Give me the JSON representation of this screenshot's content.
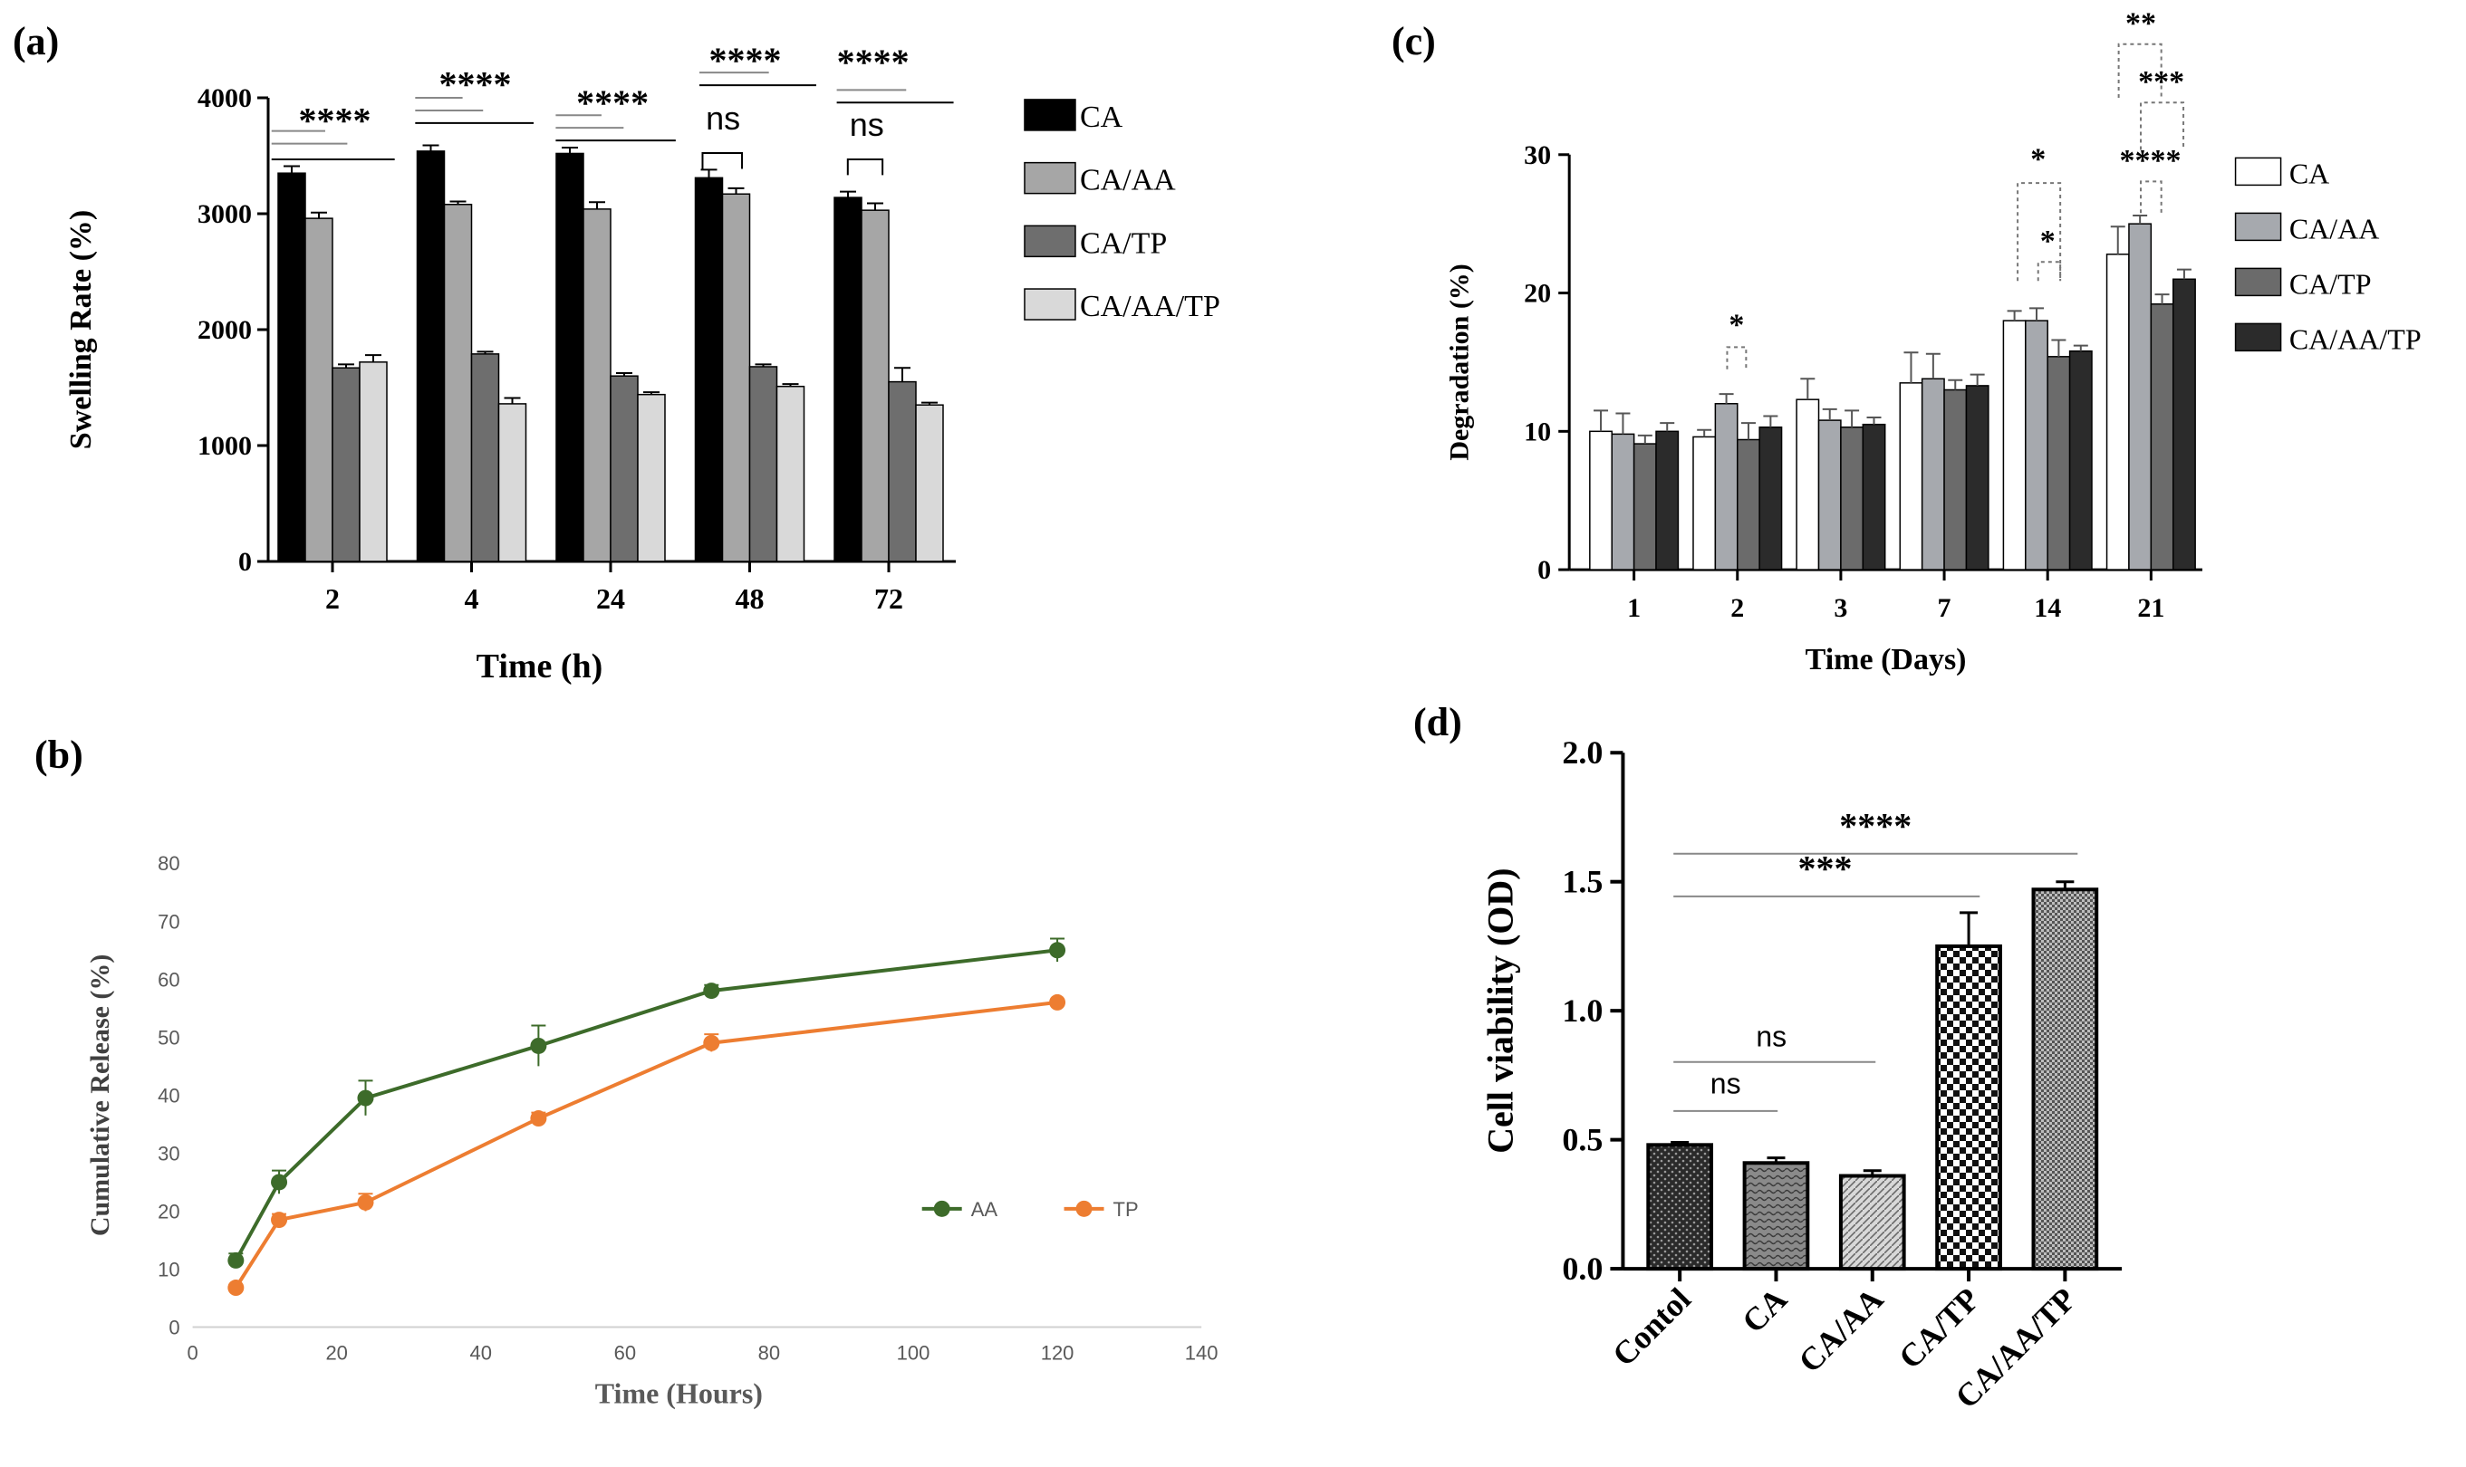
{
  "panels": {
    "a": "(a)",
    "b": "(b)",
    "c": "(c)",
    "d": "(d)"
  },
  "chart_data": [
    {
      "id": "a",
      "type": "bar",
      "title": "",
      "xlabel": "Time (h)",
      "ylabel": "Swelling Rate (%)",
      "ylim": [
        0,
        4000
      ],
      "yticks": [
        "0",
        "1000",
        "2000",
        "3000",
        "4000"
      ],
      "categories": [
        "2",
        "4",
        "24",
        "48",
        "72"
      ],
      "series": [
        {
          "name": "CA",
          "color": "#000000",
          "values": [
            3350,
            3540,
            3520,
            3310,
            3140
          ],
          "errors": [
            60,
            50,
            50,
            70,
            50
          ]
        },
        {
          "name": "CA/AA",
          "color": "#a6a6a6",
          "values": [
            2960,
            3080,
            3040,
            3170,
            3030
          ],
          "errors": [
            50,
            25,
            60,
            50,
            60
          ]
        },
        {
          "name": "CA/TP",
          "color": "#6e6e6e",
          "values": [
            1670,
            1790,
            1600,
            1680,
            1550
          ],
          "errors": [
            30,
            20,
            25,
            20,
            120
          ]
        },
        {
          "name": "CA/AA/TP",
          "color": "#d9d9d9",
          "values": [
            1720,
            1360,
            1440,
            1510,
            1350
          ],
          "errors": [
            60,
            50,
            20,
            20,
            20
          ]
        }
      ],
      "legend_position": "right",
      "annotations": [
        "****",
        "****",
        "****",
        "ns",
        "****",
        "ns"
      ]
    },
    {
      "id": "b",
      "type": "line",
      "title": "",
      "xlabel": "Time (Hours)",
      "ylabel": "Cumulative Release (%)",
      "xlim": [
        0,
        140
      ],
      "ylim": [
        0,
        80
      ],
      "xticks": [
        "0",
        "20",
        "40",
        "60",
        "80",
        "100",
        "120",
        "140"
      ],
      "yticks": [
        "0",
        "10",
        "20",
        "30",
        "40",
        "50",
        "60",
        "70",
        "80"
      ],
      "x": [
        6,
        12,
        24,
        48,
        72,
        120
      ],
      "series": [
        {
          "name": "AA",
          "color": "#3d6b2a",
          "values": [
            11.5,
            25,
            39.5,
            48.5,
            58,
            65
          ],
          "errors": [
            1.2,
            2,
            3,
            3.5,
            1,
            2
          ]
        },
        {
          "name": "TP",
          "color": "#ed7d31",
          "values": [
            6.8,
            18.5,
            21.5,
            36,
            49,
            56
          ],
          "errors": [
            0.5,
            1,
            1.5,
            1,
            1.5,
            0.5
          ]
        }
      ],
      "legend_position": "right"
    },
    {
      "id": "c",
      "type": "bar",
      "title": "",
      "xlabel": "Time (Days)",
      "ylabel": "Degradation (%)",
      "ylim": [
        0,
        30
      ],
      "yticks": [
        "0",
        "10",
        "20",
        "30"
      ],
      "categories": [
        "1",
        "2",
        "3",
        "7",
        "14",
        "21"
      ],
      "series": [
        {
          "name": "CA",
          "color": "#ffffff",
          "values": [
            10.0,
            9.6,
            12.3,
            13.5,
            18.0,
            22.8
          ],
          "errors": [
            1.5,
            0.5,
            1.5,
            2.2,
            0.7,
            2.0
          ]
        },
        {
          "name": "CA/AA",
          "color": "#a6a9ae",
          "values": [
            9.8,
            12.0,
            10.8,
            13.8,
            18.0,
            25.0
          ],
          "errors": [
            1.5,
            0.7,
            0.8,
            1.8,
            0.9,
            0.6
          ]
        },
        {
          "name": "CA/TP",
          "color": "#6b6b6b",
          "values": [
            9.1,
            9.4,
            10.3,
            13.0,
            15.4,
            19.2
          ],
          "errors": [
            0.6,
            1.2,
            1.2,
            0.7,
            1.2,
            0.7
          ]
        },
        {
          "name": "CA/AA/TP",
          "color": "#2b2b2b",
          "values": [
            10.0,
            10.3,
            10.5,
            13.3,
            15.8,
            21.0
          ],
          "errors": [
            0.6,
            0.8,
            0.5,
            0.8,
            0.4,
            0.7
          ]
        }
      ],
      "legend_position": "right",
      "annotations": [
        "*",
        "*",
        "*",
        "**",
        "***",
        "****"
      ]
    },
    {
      "id": "d",
      "type": "bar",
      "title": "",
      "xlabel": "",
      "ylabel": "Cell viability (OD)",
      "ylim": [
        0,
        2.0
      ],
      "yticks": [
        "0.0",
        "0.5",
        "1.0",
        "1.5",
        "2.0"
      ],
      "categories": [
        "Contol",
        "CA",
        "CA/AA",
        "CA/TP",
        "CA/AA/TP"
      ],
      "values": [
        0.48,
        0.41,
        0.36,
        1.25,
        1.47
      ],
      "errors": [
        0.01,
        0.02,
        0.02,
        0.13,
        0.03
      ],
      "annotations": [
        "****",
        "***",
        "ns",
        "ns"
      ]
    }
  ]
}
